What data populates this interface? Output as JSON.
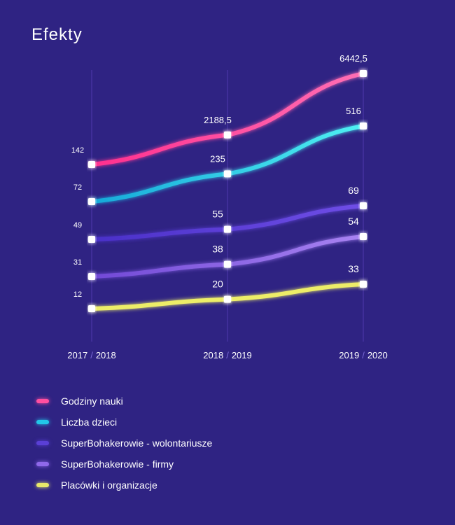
{
  "title": "Efekty",
  "chart_data": {
    "type": "line",
    "title": "Efekty",
    "categories": [
      "2017 / 2018",
      "2018 / 2019",
      "2019 / 2020"
    ],
    "series": [
      {
        "name": "Godziny nauki",
        "values": [
          142,
          2188.5,
          6442.5
        ],
        "labels": [
          "142",
          "2188,5",
          "6442,5"
        ],
        "color": "#ff4fa0"
      },
      {
        "name": "Liczba dzieci",
        "values": [
          72,
          235,
          516
        ],
        "labels": [
          "72",
          "235",
          "516"
        ],
        "color": "#22c6e8"
      },
      {
        "name": "SuperBohakerowie - wolontariusze",
        "values": [
          49,
          55,
          69
        ],
        "labels": [
          "49",
          "55",
          "69"
        ],
        "color": "#5a3fd6"
      },
      {
        "name": "SuperBohakerowie - firmy",
        "values": [
          31,
          38,
          54
        ],
        "labels": [
          "31",
          "38",
          "54"
        ],
        "color": "#8f68ea"
      },
      {
        "name": "Placówki i organizacje",
        "values": [
          12,
          20,
          33
        ],
        "labels": [
          "12",
          "20",
          "33"
        ],
        "color": "#e8e86a"
      }
    ],
    "grid": "vertical lines at each category",
    "legend": "bottom-left"
  }
}
